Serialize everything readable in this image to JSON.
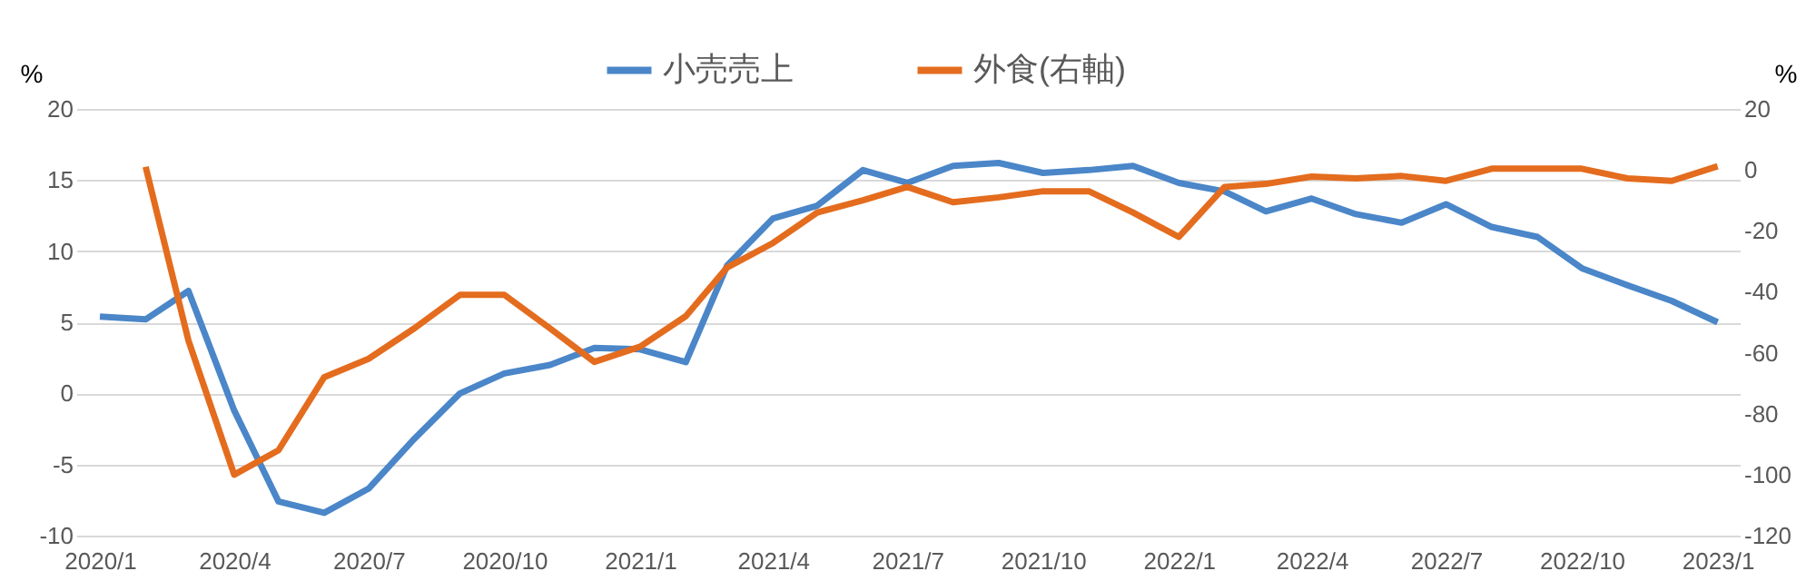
{
  "chart_data": {
    "type": "line",
    "ylabel": "%",
    "y2label": "%",
    "x": [
      "2020-01",
      "2020-02",
      "2020-03",
      "2020-04",
      "2020-05",
      "2020-06",
      "2020-07",
      "2020-08",
      "2020-09",
      "2020-10",
      "2020-11",
      "2020-12",
      "2021-01",
      "2021-02",
      "2021-03",
      "2021-04",
      "2021-05",
      "2021-06",
      "2021-07",
      "2021-08",
      "2021-09",
      "2021-10",
      "2021-11",
      "2021-12",
      "2022-01",
      "2022-02",
      "2022-03",
      "2022-04",
      "2022-05",
      "2022-06",
      "2022-07",
      "2022-08",
      "2022-09",
      "2022-10",
      "2022-11",
      "2022-12",
      "2023-01"
    ],
    "series": [
      {
        "name": "小売売上",
        "color": "#4a86c8",
        "values": [
          5.4,
          5.2,
          7.2,
          -1.2,
          -7.6,
          -8.4,
          -6.7,
          -3.2,
          0,
          1.4,
          2.0,
          3.2,
          3.1,
          2.2,
          9.0,
          12.3,
          13.2,
          15.7,
          14.8,
          16.0,
          16.2,
          15.5,
          15.7,
          16.0,
          14.8,
          14.2,
          12.8,
          13.7,
          12.6,
          12.0,
          13.3,
          11.7,
          11.0,
          8.8,
          7.6,
          6.5,
          5.0
        ]
      },
      {
        "name": "外食(右軸)",
        "color": "#e46c1e",
        "axis": "y2",
        "values": [
          null,
          1,
          -56,
          -100,
          -92,
          -68,
          -62,
          -52,
          -41,
          -41,
          -52,
          -63,
          -58,
          -48,
          -32,
          -24,
          -14,
          -10,
          -5.6,
          -10.6,
          -9,
          -7,
          -7,
          -14,
          -22,
          -5.6,
          -4.6,
          -2.2,
          -2.8,
          -2,
          -3.6,
          0.4,
          0.4,
          0.4,
          -2.8,
          -3.6,
          1.2
        ]
      }
    ],
    "xlim": [
      "2019-12-16",
      "2023-01-16"
    ],
    "xticks": [
      {
        "value": "2020-01",
        "label": "2020/1"
      },
      {
        "value": "2020-04",
        "label": "2020/4"
      },
      {
        "value": "2020-07",
        "label": "2020/7"
      },
      {
        "value": "2020-10",
        "label": "2020/10"
      },
      {
        "value": "2021-01",
        "label": "2021/1"
      },
      {
        "value": "2021-04",
        "label": "2021/4"
      },
      {
        "value": "2021-07",
        "label": "2021/7"
      },
      {
        "value": "2021-10",
        "label": "2021/10"
      },
      {
        "value": "2022-01",
        "label": "2022/1"
      },
      {
        "value": "2022-04",
        "label": "2022/4"
      },
      {
        "value": "2022-07",
        "label": "2022/7"
      },
      {
        "value": "2022-10",
        "label": "2022/10"
      },
      {
        "value": "2023-01",
        "label": "2023/1"
      }
    ],
    "ylim": [
      -10,
      20
    ],
    "yticks": [
      -10,
      -5,
      0,
      5,
      10,
      15,
      20
    ],
    "y2lim": [
      -120,
      20
    ],
    "y2ticks": [
      -120,
      -100,
      -80,
      -60,
      -40,
      -20,
      0,
      20
    ],
    "grid": "y",
    "legend": "top",
    "line_style": "solid",
    "marker": "none"
  }
}
